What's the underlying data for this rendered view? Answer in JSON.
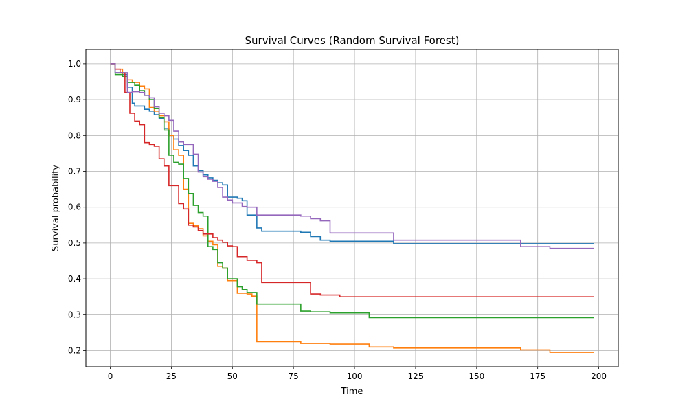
{
  "chart_data": {
    "type": "line",
    "step": "post",
    "title": "Survival Curves (Random Survival Forest)",
    "xlabel": "Time",
    "ylabel": "Survival probability",
    "xlim": [
      -10,
      208
    ],
    "ylim": [
      0.155,
      1.04
    ],
    "xticks": [
      0,
      25,
      50,
      75,
      100,
      125,
      150,
      175,
      200
    ],
    "xtick_labels": [
      "0",
      "25",
      "50",
      "75",
      "100",
      "125",
      "150",
      "175",
      "200"
    ],
    "yticks": [
      0.2,
      0.3,
      0.4,
      0.5,
      0.6,
      0.7,
      0.8,
      0.9,
      1.0
    ],
    "ytick_labels": [
      "0.2",
      "0.3",
      "0.4",
      "0.5",
      "0.6",
      "0.7",
      "0.8",
      "0.9",
      "1.0"
    ],
    "grid": true,
    "legend": "none",
    "series": [
      {
        "color": "#1f77b4",
        "x": [
          0,
          2,
          5,
          7,
          9,
          10,
          14,
          16,
          18,
          20,
          22,
          24,
          26,
          28,
          30,
          32,
          34,
          36,
          38,
          40,
          42,
          44,
          46,
          48,
          52,
          54,
          56,
          60,
          62,
          78,
          82,
          86,
          90,
          106,
          116,
          198
        ],
        "y": [
          1.0,
          0.975,
          0.97,
          0.935,
          0.89,
          0.882,
          0.873,
          0.868,
          0.858,
          0.848,
          0.82,
          0.8,
          0.79,
          0.772,
          0.758,
          0.745,
          0.715,
          0.702,
          0.69,
          0.682,
          0.675,
          0.668,
          0.662,
          0.628,
          0.625,
          0.618,
          0.578,
          0.542,
          0.533,
          0.53,
          0.518,
          0.508,
          0.505,
          0.505,
          0.498,
          0.498
        ]
      },
      {
        "color": "#ff7f0e",
        "x": [
          0,
          2,
          5,
          7,
          9,
          12,
          14,
          16,
          18,
          20,
          22,
          24,
          26,
          28,
          30,
          32,
          34,
          36,
          38,
          40,
          42,
          44,
          46,
          48,
          52,
          56,
          58,
          60,
          78,
          90,
          106,
          116,
          168,
          180,
          198
        ],
        "y": [
          1.0,
          0.985,
          0.965,
          0.955,
          0.948,
          0.938,
          0.93,
          0.878,
          0.868,
          0.855,
          0.838,
          0.8,
          0.76,
          0.745,
          0.65,
          0.555,
          0.548,
          0.54,
          0.52,
          0.505,
          0.495,
          0.435,
          0.43,
          0.395,
          0.36,
          0.358,
          0.352,
          0.225,
          0.22,
          0.218,
          0.21,
          0.207,
          0.202,
          0.195,
          0.195
        ]
      },
      {
        "color": "#2ca02c",
        "x": [
          0,
          2,
          5,
          7,
          10,
          12,
          14,
          16,
          18,
          20,
          22,
          24,
          26,
          28,
          30,
          32,
          34,
          36,
          38,
          40,
          42,
          44,
          46,
          48,
          52,
          54,
          56,
          60,
          78,
          82,
          90,
          106,
          198
        ],
        "y": [
          1.0,
          0.97,
          0.965,
          0.948,
          0.94,
          0.925,
          0.912,
          0.9,
          0.875,
          0.85,
          0.815,
          0.745,
          0.725,
          0.72,
          0.68,
          0.638,
          0.605,
          0.585,
          0.575,
          0.49,
          0.482,
          0.445,
          0.43,
          0.4,
          0.378,
          0.37,
          0.362,
          0.33,
          0.31,
          0.308,
          0.305,
          0.292,
          0.292
        ]
      },
      {
        "color": "#d62728",
        "x": [
          0,
          2,
          4,
          6,
          8,
          10,
          12,
          14,
          16,
          18,
          20,
          22,
          24,
          28,
          30,
          32,
          34,
          36,
          38,
          42,
          44,
          46,
          48,
          50,
          52,
          56,
          60,
          62,
          82,
          86,
          94,
          198
        ],
        "y": [
          1.0,
          0.985,
          0.975,
          0.92,
          0.862,
          0.84,
          0.83,
          0.78,
          0.775,
          0.77,
          0.735,
          0.715,
          0.66,
          0.61,
          0.595,
          0.55,
          0.545,
          0.535,
          0.525,
          0.515,
          0.508,
          0.502,
          0.492,
          0.49,
          0.462,
          0.452,
          0.445,
          0.39,
          0.358,
          0.355,
          0.35,
          0.35
        ]
      },
      {
        "color": "#9467bd",
        "x": [
          0,
          2,
          7,
          9,
          12,
          14,
          16,
          18,
          20,
          22,
          24,
          26,
          28,
          30,
          34,
          36,
          38,
          40,
          42,
          44,
          46,
          48,
          50,
          54,
          56,
          60,
          78,
          82,
          86,
          90,
          116,
          168,
          180,
          198
        ],
        "y": [
          1.0,
          0.975,
          0.92,
          0.922,
          0.92,
          0.912,
          0.905,
          0.88,
          0.862,
          0.855,
          0.842,
          0.812,
          0.782,
          0.775,
          0.748,
          0.698,
          0.685,
          0.678,
          0.672,
          0.655,
          0.628,
          0.62,
          0.612,
          0.602,
          0.6,
          0.578,
          0.575,
          0.568,
          0.562,
          0.528,
          0.508,
          0.49,
          0.485,
          0.485
        ]
      }
    ]
  }
}
